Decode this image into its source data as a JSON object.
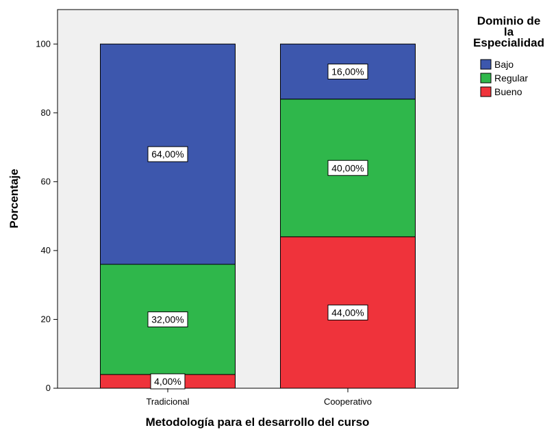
{
  "chart_data": {
    "type": "bar",
    "stacked": true,
    "categories": [
      "Tradicional",
      "Cooperativo"
    ],
    "series": [
      {
        "name": "Bueno",
        "values": [
          4,
          44
        ],
        "labels": [
          "4,00%",
          "44,00%"
        ],
        "color": "#ef333b"
      },
      {
        "name": "Regular",
        "values": [
          32,
          40
        ],
        "labels": [
          "32,00%",
          "40,00%"
        ],
        "color": "#2fb74b"
      },
      {
        "name": "Bajo",
        "values": [
          64,
          16
        ],
        "labels": [
          "64,00%",
          "16,00%"
        ],
        "color": "#3d57ad"
      }
    ],
    "xlabel": "Metodología para el desarrollo del curso",
    "ylabel": "Porcentaje",
    "ylim": [
      0,
      110
    ],
    "yticks": [
      0,
      20,
      40,
      60,
      80,
      100
    ],
    "plot_background": "#f0f0f0",
    "grid": false,
    "legend": {
      "title_lines": [
        "Dominio de",
        "la",
        "Especialidad"
      ],
      "placement": "right",
      "order": [
        "Bajo",
        "Regular",
        "Bueno"
      ]
    }
  }
}
